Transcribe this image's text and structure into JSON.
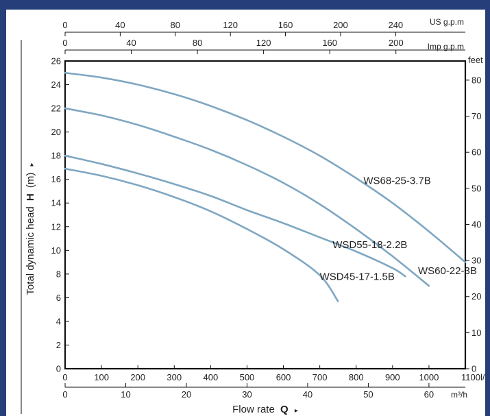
{
  "chart_data": {
    "type": "line",
    "title": "",
    "xlabel_main": "Flow rate",
    "xlabel_symbol": "Q",
    "ylabel_main": "Total dynamic head",
    "ylabel_symbol": "H",
    "ylabel_unit": "(m)",
    "units": {
      "us_gpm": "US g.p.m",
      "imp_gpm": "Imp g.p.m",
      "feet": "feet",
      "lmin": "l/min",
      "m3h": "m³/h"
    },
    "x_unit": "l/min",
    "xlim": [
      0,
      1100
    ],
    "y_unit": "m",
    "ylim": [
      0,
      26
    ],
    "grid": false,
    "axes": {
      "us_gpm_ticks": [
        0,
        40,
        80,
        120,
        160,
        200,
        240
      ],
      "imp_gpm_ticks": [
        0,
        40,
        80,
        120,
        160,
        200
      ],
      "lmin_ticks": [
        0,
        100,
        200,
        300,
        400,
        500,
        600,
        700,
        800,
        900,
        1000,
        1100
      ],
      "m3h_ticks": [
        0,
        10,
        20,
        30,
        40,
        50,
        60
      ],
      "y_ticks": [
        0,
        2,
        4,
        6,
        8,
        10,
        12,
        14,
        16,
        18,
        20,
        22,
        24,
        26
      ],
      "feet_ticks": [
        0,
        10,
        20,
        30,
        40,
        50,
        60,
        70,
        80
      ]
    },
    "series": [
      {
        "name": "WS68-25-3.7B",
        "x": [
          0,
          100,
          200,
          300,
          400,
          500,
          600,
          700,
          800,
          900,
          1000,
          1100
        ],
        "y": [
          25,
          24.6,
          24,
          23.2,
          22.2,
          21,
          19.6,
          18,
          16.1,
          14,
          11.6,
          9
        ]
      },
      {
        "name": "WS60-22-3B",
        "x": [
          0,
          100,
          200,
          300,
          400,
          500,
          600,
          700,
          800,
          900,
          1000
        ],
        "y": [
          22,
          21.4,
          20.6,
          19.6,
          18.5,
          17.2,
          15.7,
          13.9,
          11.8,
          9.5,
          7
        ]
      },
      {
        "name": "WSD55-18-2.2B",
        "x": [
          0,
          100,
          200,
          300,
          400,
          500,
          600,
          700,
          800,
          900,
          935
        ],
        "y": [
          18,
          17.3,
          16.5,
          15.6,
          14.6,
          13.4,
          12.3,
          11.1,
          9.9,
          8.5,
          7.8
        ]
      },
      {
        "name": "WSD45-17-1.5B",
        "x": [
          0,
          100,
          200,
          300,
          400,
          500,
          600,
          700,
          750
        ],
        "y": [
          16.9,
          16.3,
          15.5,
          14.5,
          13.3,
          11.8,
          10.1,
          7.9,
          5.7
        ]
      }
    ],
    "labels": [
      {
        "text": "WS68-25-3.7B",
        "x": 820,
        "y": 15.6
      },
      {
        "text": "WSD55-18-2.2B",
        "x": 735,
        "y": 10.2
      },
      {
        "text": "WS60-22-3B",
        "x": 970,
        "y": 8.0
      },
      {
        "text": "WSD45-17-1.5B",
        "x": 700,
        "y": 7.5
      }
    ]
  }
}
